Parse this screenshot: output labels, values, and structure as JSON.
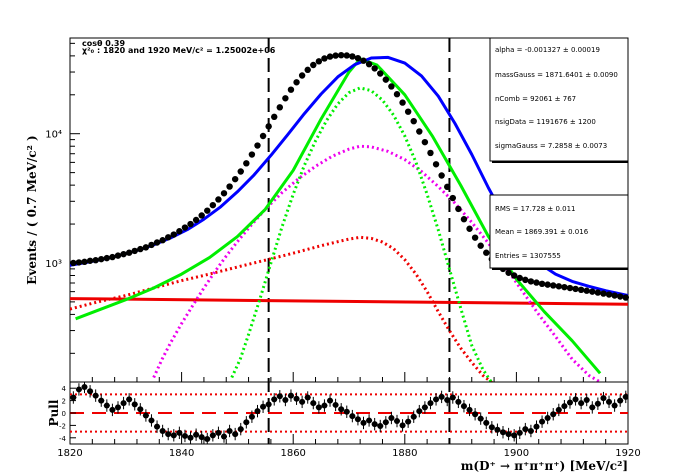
{
  "chart_data": [
    {
      "type": "line",
      "panel": "fit",
      "title_lines": [
        "cos#theta 0.39",
        "M_{D}^{1} 1820 and 1920 MeV/c^{2} = 1.25002e+06"
      ],
      "title_display": [
        "cosθ 0.39",
        "χ²₀ : 1820 and  1920 MeV/c² = 1.25002e+06"
      ],
      "ylabel": "Events / ( 0.7  MeV/c² )",
      "xlim": [
        1820,
        1920
      ],
      "ylim": [
        120,
        55000
      ],
      "yscale": "log",
      "x_ticks": [
        1820,
        1840,
        1860,
        1880,
        1900,
        1920
      ],
      "y_ticks": [
        {
          "value": 1000,
          "label": "10³"
        },
        {
          "value": 10000,
          "label": "10⁴"
        }
      ],
      "vertical_lines": [
        1855.6,
        1888.0
      ],
      "fit_params": [
        {
          "text": "alpha =  -0.001327  ± 0.00019"
        },
        {
          "text": "massGauss =  1871.6401 ± 0.0090"
        },
        {
          "text": "nComb =  92061 ± 767"
        },
        {
          "text": "nsigData =  1191676 ± 1200"
        },
        {
          "text": "sigmaGauss =  7.2858 ± 0.0073"
        }
      ],
      "stats": [
        {
          "text": "RMS =  17.728 ± 0.011"
        },
        {
          "text": "Mean =  1869.391 ± 0.016"
        },
        {
          "text": "Entries =  1307555"
        }
      ],
      "series": [
        {
          "key": "data",
          "style": "points",
          "color": "#000000",
          "x": [
            1820.6,
            1821.6,
            1822.6,
            1823.6,
            1824.6,
            1825.6,
            1826.6,
            1827.6,
            1828.6,
            1829.6,
            1830.6,
            1831.6,
            1832.6,
            1833.6,
            1834.6,
            1835.6,
            1836.6,
            1837.6,
            1838.6,
            1839.6,
            1840.6,
            1841.6,
            1842.6,
            1843.6,
            1844.6,
            1845.6,
            1846.6,
            1847.6,
            1848.6,
            1849.6,
            1850.6,
            1851.6,
            1852.6,
            1853.6,
            1854.6,
            1855.6,
            1856.6,
            1857.6,
            1858.6,
            1859.6,
            1860.6,
            1861.6,
            1862.6,
            1863.6,
            1864.6,
            1865.6,
            1866.6,
            1867.6,
            1868.6,
            1869.6,
            1870.6,
            1871.6,
            1872.6,
            1873.6,
            1874.6,
            1875.6,
            1876.6,
            1877.6,
            1878.6,
            1879.6,
            1880.6,
            1881.6,
            1882.6,
            1883.6,
            1884.6,
            1885.6,
            1886.6,
            1887.6,
            1888.6,
            1889.6,
            1890.6,
            1891.6,
            1892.6,
            1893.6,
            1894.6,
            1895.6,
            1896.6,
            1897.6,
            1898.6,
            1899.6,
            1900.6,
            1901.6,
            1902.6,
            1903.6,
            1904.6,
            1905.6,
            1906.6,
            1907.6,
            1908.6,
            1909.6,
            1910.6,
            1911.6,
            1912.6,
            1913.6,
            1914.6,
            1915.6,
            1916.6,
            1917.6,
            1918.6,
            1919.6
          ],
          "y": [
            1000,
            1010,
            1020,
            1040,
            1050,
            1070,
            1090,
            1110,
            1140,
            1170,
            1200,
            1240,
            1280,
            1320,
            1380,
            1440,
            1500,
            1580,
            1660,
            1760,
            1880,
            2000,
            2150,
            2330,
            2540,
            2800,
            3100,
            3460,
            3900,
            4450,
            5100,
            5900,
            6900,
            8100,
            9600,
            11400,
            13500,
            16000,
            18800,
            21900,
            25000,
            28200,
            31200,
            34000,
            36300,
            38200,
            39500,
            40200,
            40500,
            40300,
            39600,
            38400,
            36700,
            34500,
            32000,
            29200,
            26200,
            23200,
            20200,
            17400,
            14800,
            12500,
            10400,
            8600,
            7100,
            5800,
            4750,
            3880,
            3180,
            2620,
            2180,
            1840,
            1570,
            1360,
            1200,
            1070,
            970,
            900,
            840,
            800,
            765,
            740,
            720,
            705,
            690,
            680,
            670,
            660,
            650,
            640,
            630,
            620,
            610,
            600,
            590,
            580,
            570,
            560,
            550,
            540
          ]
        },
        {
          "key": "total_fit",
          "style": "line",
          "color": "#0000ff",
          "x": [
            1820,
            1823,
            1826,
            1829,
            1832,
            1835,
            1838,
            1841,
            1844,
            1847,
            1850,
            1853,
            1856,
            1859,
            1862,
            1865,
            1868,
            1871,
            1874,
            1877,
            1880,
            1883,
            1886,
            1889,
            1892,
            1895,
            1898,
            1901,
            1904,
            1907,
            1910,
            1913,
            1916,
            1920
          ],
          "y": [
            960,
            1010,
            1070,
            1150,
            1250,
            1380,
            1560,
            1810,
            2180,
            2720,
            3550,
            4800,
            6800,
            9800,
            14300,
            20300,
            27500,
            34200,
            38500,
            38900,
            35200,
            28000,
            19500,
            12000,
            6900,
            3800,
            2200,
            1400,
            1000,
            820,
            720,
            660,
            610,
            560
          ]
        },
        {
          "key": "signal_total",
          "style": "line",
          "color": "#00ee00",
          "x": [
            1821,
            1825,
            1830,
            1835,
            1840,
            1845,
            1850,
            1855,
            1860,
            1865,
            1870,
            1872,
            1875,
            1880,
            1885,
            1890,
            1895,
            1900,
            1905,
            1910,
            1915
          ],
          "y": [
            370,
            430,
            520,
            640,
            820,
            1100,
            1600,
            2600,
            5200,
            13000,
            30000,
            38000,
            34000,
            20000,
            9500,
            4000,
            1600,
            750,
            420,
            250,
            140
          ]
        },
        {
          "key": "gauss_narrow",
          "style": "dotted",
          "color": "#00ee00",
          "x": [
            1849,
            1850.5,
            1852,
            1854,
            1856,
            1858,
            1860,
            1862,
            1864,
            1866,
            1868,
            1870,
            1872,
            1874,
            1876,
            1878,
            1880,
            1882,
            1884,
            1886,
            1888,
            1890,
            1892,
            1894,
            1895.5
          ],
          "y": [
            130,
            180,
            280,
            520,
            1000,
            1900,
            3400,
            5700,
            8800,
            12700,
            17000,
            20800,
            22600,
            21500,
            18200,
            13900,
            9600,
            6000,
            3400,
            1800,
            900,
            450,
            230,
            150,
            120
          ]
        },
        {
          "key": "gauss_wide",
          "style": "dotted",
          "color": "#ee00ee",
          "x": [
            1835,
            1836.5,
            1838,
            1840,
            1842,
            1844,
            1846,
            1848,
            1850,
            1852,
            1855,
            1858,
            1861,
            1864,
            1867,
            1870,
            1872,
            1874,
            1877,
            1880,
            1883,
            1886,
            1889,
            1892,
            1895,
            1898,
            1901,
            1904,
            1907,
            1910,
            1913,
            1915
          ],
          "y": [
            130,
            180,
            240,
            340,
            470,
            640,
            860,
            1130,
            1460,
            1860,
            2600,
            3500,
            4500,
            5600,
            6700,
            7600,
            8000,
            7900,
            7300,
            6300,
            5100,
            3900,
            2900,
            2060,
            1420,
            940,
            610,
            400,
            270,
            180,
            135,
            120
          ]
        },
        {
          "key": "bkg_red_dotted",
          "style": "dotted",
          "color": "#ee0000",
          "x": [
            1820,
            1825,
            1830,
            1835,
            1840,
            1845,
            1850,
            1855,
            1860,
            1865,
            1868,
            1870,
            1872,
            1874,
            1876,
            1878,
            1880,
            1882,
            1884,
            1886,
            1888,
            1890,
            1892,
            1894,
            1895.5,
            1897
          ],
          "y": [
            440,
            500,
            560,
            640,
            730,
            820,
            930,
            1050,
            1190,
            1360,
            1460,
            1530,
            1580,
            1550,
            1450,
            1290,
            1060,
            820,
            600,
            420,
            300,
            220,
            170,
            135,
            120,
            110
          ]
        },
        {
          "key": "combinatorial",
          "style": "line",
          "color": "#ee0000",
          "x": [
            1820,
            1920
          ],
          "y": [
            530,
            480
          ]
        }
      ]
    },
    {
      "type": "scatter",
      "panel": "pull",
      "ylabel": "Pull",
      "xlabel": "m(D⁺ → π⁺π⁺π⁺) [MeV/c²]",
      "xlim": [
        1820,
        1920
      ],
      "ylim": [
        -5,
        5
      ],
      "y_ticks": [
        -4,
        -2,
        0,
        2,
        4
      ],
      "reference_lines": [
        {
          "value": 0,
          "style": "dashed"
        },
        {
          "value": 3,
          "style": "dotted"
        },
        {
          "value": -3,
          "style": "dotted"
        }
      ],
      "x": [
        1820.6,
        1821.6,
        1822.6,
        1823.6,
        1824.6,
        1825.6,
        1826.6,
        1827.6,
        1828.6,
        1829.6,
        1830.6,
        1831.6,
        1832.6,
        1833.6,
        1834.6,
        1835.6,
        1836.6,
        1837.6,
        1838.6,
        1839.6,
        1840.6,
        1841.6,
        1842.6,
        1843.6,
        1844.6,
        1845.6,
        1846.6,
        1847.6,
        1848.6,
        1849.6,
        1850.6,
        1851.6,
        1852.6,
        1853.6,
        1854.6,
        1855.6,
        1856.6,
        1857.6,
        1858.6,
        1859.6,
        1860.6,
        1861.6,
        1862.6,
        1863.6,
        1864.6,
        1865.6,
        1866.6,
        1867.6,
        1868.6,
        1869.6,
        1870.6,
        1871.6,
        1872.6,
        1873.6,
        1874.6,
        1875.6,
        1876.6,
        1877.6,
        1878.6,
        1879.6,
        1880.6,
        1881.6,
        1882.6,
        1883.6,
        1884.6,
        1885.6,
        1886.6,
        1887.6,
        1888.6,
        1889.6,
        1890.6,
        1891.6,
        1892.6,
        1893.6,
        1894.6,
        1895.6,
        1896.6,
        1897.6,
        1898.6,
        1899.6,
        1900.6,
        1901.6,
        1902.6,
        1903.6,
        1904.6,
        1905.6,
        1906.6,
        1907.6,
        1908.6,
        1909.6,
        1910.6,
        1911.6,
        1912.6,
        1913.6,
        1914.6,
        1915.6,
        1916.6,
        1917.6,
        1918.6,
        1919.6
      ],
      "y": [
        2.5,
        3.8,
        4.2,
        3.5,
        2.8,
        2.0,
        1.2,
        0.5,
        0.9,
        1.6,
        2.2,
        1.4,
        0.6,
        -0.4,
        -1.2,
        -2.2,
        -2.9,
        -3.4,
        -3.6,
        -3.2,
        -3.7,
        -4.0,
        -3.5,
        -3.9,
        -4.2,
        -3.6,
        -3.2,
        -3.8,
        -2.9,
        -3.4,
        -2.6,
        -1.5,
        -0.6,
        0.3,
        1.0,
        1.4,
        2.2,
        2.7,
        2.1,
        2.8,
        2.3,
        1.8,
        2.5,
        1.6,
        0.9,
        1.2,
        2.0,
        1.3,
        0.6,
        0.2,
        -0.5,
        -1.0,
        -1.6,
        -1.2,
        -1.8,
        -2.1,
        -1.5,
        -0.8,
        -1.3,
        -2.0,
        -1.4,
        -0.6,
        0.3,
        0.9,
        1.6,
        2.2,
        2.6,
        2.1,
        2.5,
        1.8,
        1.1,
        0.5,
        -0.2,
        -0.9,
        -1.6,
        -2.3,
        -2.7,
        -3.1,
        -3.4,
        -3.6,
        -3.2,
        -2.6,
        -2.9,
        -2.2,
        -1.4,
        -0.8,
        -0.2,
        0.5,
        1.1,
        1.7,
        2.2,
        1.6,
        2.1,
        0.9,
        1.5,
        2.4,
        1.8,
        1.2,
        2.0,
        2.6
      ]
    }
  ]
}
